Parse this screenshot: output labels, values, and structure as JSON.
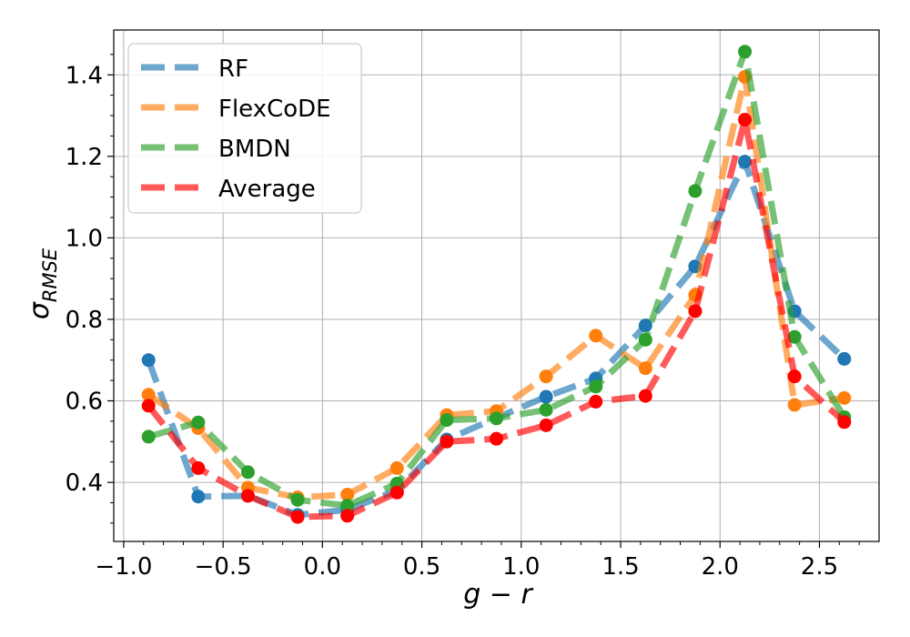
{
  "chart_data": {
    "type": "line",
    "xlabel": "g − r",
    "ylabel_main": "σ",
    "ylabel_sub": "RMSE",
    "xlim": [
      -1.05,
      2.8
    ],
    "ylim": [
      0.255,
      1.51
    ],
    "xticks": [
      -1.0,
      -0.5,
      0.0,
      0.5,
      1.0,
      1.5,
      2.0,
      2.5
    ],
    "xtick_labels": [
      "−1.0",
      "−0.5",
      "0.0",
      "0.5",
      "1.0",
      "1.5",
      "2.0",
      "2.5"
    ],
    "yticks": [
      0.4,
      0.6,
      0.8,
      1.0,
      1.2,
      1.4
    ],
    "ytick_labels": [
      "0.4",
      "0.6",
      "0.8",
      "1.0",
      "1.2",
      "1.4"
    ],
    "grid": true,
    "legend_position": "top-left",
    "x": [
      -0.875,
      -0.625,
      -0.375,
      -0.125,
      0.125,
      0.375,
      0.625,
      0.875,
      1.125,
      1.375,
      1.625,
      1.875,
      2.125,
      2.375,
      2.625
    ],
    "series": [
      {
        "name": "RF",
        "color": "#1f77b4",
        "marker_color": "#1f77b4",
        "values": [
          0.7,
          0.365,
          0.367,
          0.32,
          0.333,
          0.38,
          0.505,
          0.558,
          0.61,
          0.655,
          0.785,
          0.93,
          1.187,
          0.82,
          0.703
        ]
      },
      {
        "name": "FlexCoDE",
        "color": "#ff7f0e",
        "marker_color": "#ff7f0e",
        "values": [
          0.615,
          0.533,
          0.387,
          0.363,
          0.37,
          0.435,
          0.565,
          0.575,
          0.66,
          0.76,
          0.68,
          0.86,
          1.395,
          0.59,
          0.607
        ]
      },
      {
        "name": "BMDN",
        "color": "#2ca02c",
        "marker_color": "#2ca02c",
        "values": [
          0.512,
          0.547,
          0.425,
          0.357,
          0.343,
          0.397,
          0.553,
          0.557,
          0.578,
          0.635,
          0.75,
          1.115,
          1.457,
          0.757,
          0.56
        ]
      },
      {
        "name": "Average",
        "color": "#ff0000",
        "marker_color": "#ff0000",
        "values": [
          0.588,
          0.435,
          0.367,
          0.315,
          0.318,
          0.375,
          0.5,
          0.507,
          0.54,
          0.598,
          0.612,
          0.82,
          1.29,
          0.66,
          0.548
        ]
      }
    ]
  }
}
